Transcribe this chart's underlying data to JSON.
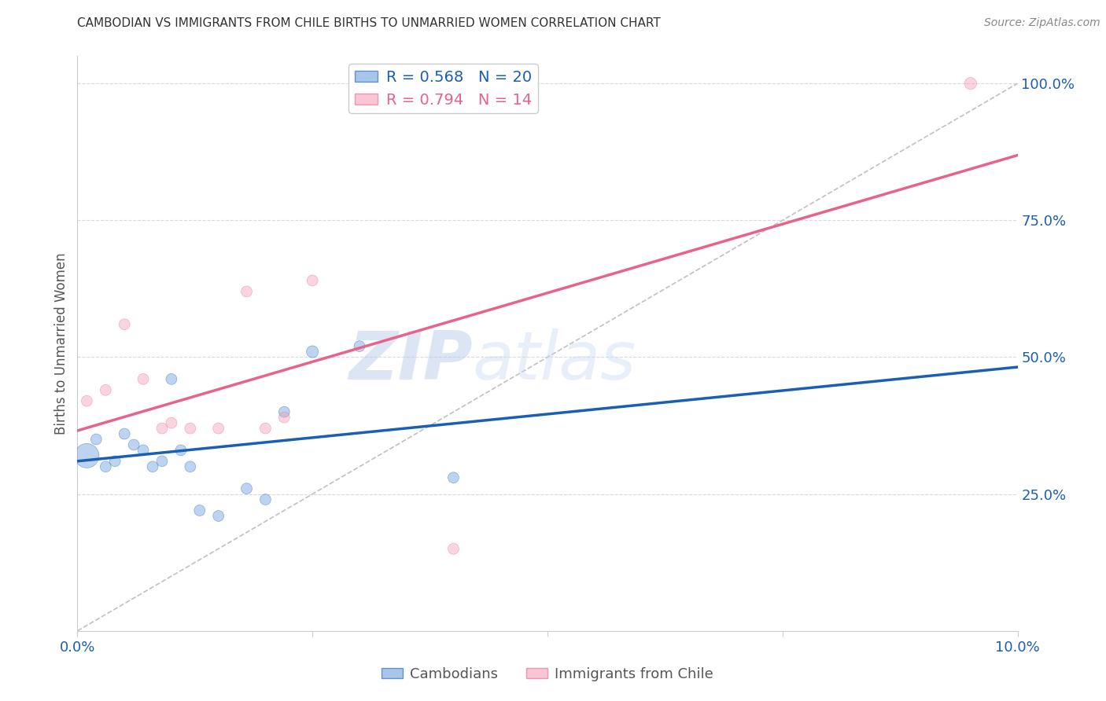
{
  "title": "CAMBODIAN VS IMMIGRANTS FROM CHILE BIRTHS TO UNMARRIED WOMEN CORRELATION CHART",
  "source": "Source: ZipAtlas.com",
  "ylabel": "Births to Unmarried Women",
  "watermark": "ZIPatlas",
  "cambodian_x": [
    0.001,
    0.002,
    0.003,
    0.004,
    0.005,
    0.006,
    0.007,
    0.008,
    0.009,
    0.01,
    0.011,
    0.012,
    0.013,
    0.015,
    0.018,
    0.02,
    0.022,
    0.025,
    0.03,
    0.04
  ],
  "cambodian_y": [
    0.32,
    0.35,
    0.3,
    0.31,
    0.36,
    0.34,
    0.33,
    0.3,
    0.31,
    0.46,
    0.33,
    0.3,
    0.22,
    0.21,
    0.26,
    0.24,
    0.4,
    0.51,
    0.52,
    0.28
  ],
  "cambodian_sizes": [
    500,
    100,
    100,
    100,
    100,
    100,
    100,
    100,
    100,
    100,
    100,
    100,
    100,
    100,
    100,
    100,
    100,
    120,
    100,
    100
  ],
  "chile_x": [
    0.001,
    0.003,
    0.005,
    0.007,
    0.009,
    0.01,
    0.012,
    0.015,
    0.018,
    0.02,
    0.022,
    0.025,
    0.04,
    0.095
  ],
  "chile_y": [
    0.42,
    0.44,
    0.56,
    0.46,
    0.37,
    0.38,
    0.37,
    0.37,
    0.62,
    0.37,
    0.39,
    0.64,
    0.15,
    1.0
  ],
  "chile_sizes": [
    100,
    100,
    100,
    100,
    100,
    100,
    100,
    100,
    100,
    100,
    100,
    100,
    100,
    120
  ],
  "cambodian_line_color": "#1a5fb4",
  "chile_line_color": "#e8628a",
  "dashed_line_color": "#c0c0c0",
  "grid_color": "#d8d8e8",
  "background_color": "#ffffff",
  "scatter_blue": "#6ca0dc",
  "scatter_pink": "#f4a0b8",
  "xmin": 0.0,
  "xmax": 0.1,
  "ymin": 0.0,
  "ymax": 1.05,
  "xticks": [
    0.0,
    0.025,
    0.05,
    0.075,
    0.1
  ],
  "xticklabels": [
    "0.0%",
    "",
    "",
    "",
    "10.0%"
  ],
  "yticks_right": [
    0.25,
    0.5,
    0.75,
    1.0
  ],
  "yticklabels_right": [
    "25.0%",
    "50.0%",
    "75.0%",
    "100.0%"
  ]
}
